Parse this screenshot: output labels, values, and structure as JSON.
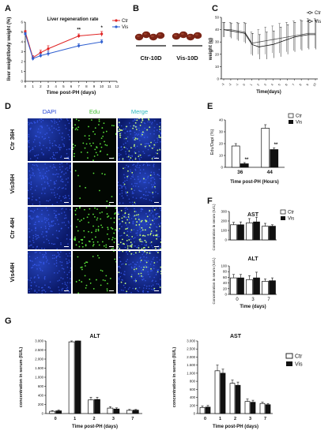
{
  "panels": {
    "A": {
      "letter": "A",
      "title": "Liver regeneration rate",
      "ylabel": "liver weight/body weight (%)",
      "xlabel": "Time post-PH (days)",
      "legend": [
        "Ctr",
        "Vis"
      ],
      "significance": [
        "**",
        "*"
      ]
    },
    "B": {
      "letter": "B",
      "captions": [
        "Ctr-10D",
        "Vis-10D"
      ]
    },
    "C": {
      "letter": "C",
      "ylabel": "weight (g)",
      "xlabel": "Time(days)",
      "legend": [
        "Ctr",
        "Vis"
      ]
    },
    "D": {
      "letter": "D",
      "columns": [
        "DAPI",
        "Edu",
        "Merge"
      ],
      "rows": [
        "Ctr 36H",
        "Vis36H",
        "Ctr 44H",
        "Vis44H"
      ]
    },
    "E": {
      "letter": "E",
      "ylabel": "Edu/Dapi (%)",
      "xlabel": "Time post-PH (Hours)",
      "legend": [
        "Ctr",
        "Vis"
      ],
      "significance": [
        "**",
        "**"
      ]
    },
    "F": {
      "letter": "F",
      "ylabel": "Concentration in serum (IU/L)",
      "xlabel": "Time (days)",
      "legend": [
        "Ctr",
        "Vis"
      ]
    },
    "G": {
      "letter": "G",
      "ylabel": "concentration in serum (IU/L)",
      "xlabel": "Time post-PH (days)",
      "legend": [
        "Ctr",
        "Vis"
      ]
    }
  },
  "colors": {
    "ctr": "#e02424",
    "vis": "#2f5fd0",
    "ctr_bar": "#ffffff",
    "vis_bar": "#111111"
  },
  "chart_data": [
    {
      "id": "A",
      "type": "line",
      "title": "Liver regeneration rate",
      "xlabel": "Time post-PH (days)",
      "ylabel": "liver weight/body weight (%)",
      "xlim": [
        0,
        12
      ],
      "ylim": [
        0,
        6
      ],
      "xticks": [
        0,
        1,
        2,
        3,
        4,
        5,
        6,
        7,
        8,
        9,
        10,
        11,
        12
      ],
      "yticks": [
        0,
        1,
        2,
        3,
        4,
        5,
        6
      ],
      "series": [
        {
          "name": "Ctr",
          "x": [
            0,
            1,
            2,
            3,
            7,
            10
          ],
          "y": [
            5.0,
            2.4,
            2.9,
            3.3,
            4.6,
            4.8
          ],
          "err": [
            0.15,
            0.2,
            0.25,
            0.3,
            0.2,
            0.25
          ]
        },
        {
          "name": "Vis",
          "x": [
            0,
            1,
            2,
            3,
            7,
            10
          ],
          "y": [
            4.8,
            2.3,
            2.6,
            2.8,
            3.6,
            4.0
          ],
          "err": [
            0.15,
            0.2,
            0.2,
            0.25,
            0.2,
            0.2
          ]
        }
      ]
    },
    {
      "id": "C",
      "type": "line",
      "xlabel": "Time(days)",
      "ylabel": "weight (g)",
      "ylim": [
        0,
        50
      ],
      "yticks": [
        0,
        10,
        20,
        30,
        40,
        50
      ],
      "categories": [
        "-3",
        "-2",
        "-1",
        "0",
        "1",
        "2",
        "3",
        "4",
        "5",
        "6",
        "7",
        "8",
        "9",
        "10"
      ],
      "series": [
        {
          "name": "Ctr",
          "values": [
            40,
            40,
            39,
            38,
            29,
            30,
            31,
            32,
            33,
            34,
            35,
            36,
            37,
            37
          ],
          "err": [
            6,
            6,
            7,
            8,
            9,
            10,
            11,
            11,
            12,
            12,
            12,
            12,
            12,
            12
          ]
        },
        {
          "name": "Vis",
          "values": [
            40,
            39,
            38,
            37,
            28,
            26,
            27,
            28,
            30,
            32,
            34,
            35,
            36,
            36
          ],
          "err": [
            6,
            6,
            7,
            8,
            9,
            10,
            11,
            11,
            12,
            12,
            12,
            12,
            12,
            12
          ]
        }
      ]
    },
    {
      "id": "E",
      "type": "bar",
      "xlabel": "Time post-PH (Hours)",
      "ylabel": "Edu/Dapi (%)",
      "ylim": [
        0,
        40
      ],
      "yticks": [
        0,
        10,
        20,
        30,
        40
      ],
      "categories": [
        "36",
        "44"
      ],
      "series": [
        {
          "name": "Ctr",
          "values": [
            18,
            33
          ],
          "err": [
            2,
            3
          ]
        },
        {
          "name": "Vis",
          "values": [
            3,
            15
          ],
          "err": [
            1,
            1.5
          ]
        }
      ]
    },
    {
      "id": "F-AST",
      "type": "bar",
      "title": "AST",
      "ylabel": "Concentration in serum (IU/L)",
      "ylim": [
        0,
        300
      ],
      "yticks": [
        0,
        100,
        200,
        300
      ],
      "categories": [
        "0",
        "3",
        "7"
      ],
      "series": [
        {
          "name": "Ctr",
          "values": [
            160,
            180,
            145
          ],
          "err": [
            25,
            45,
            30
          ]
        },
        {
          "name": "Vis",
          "values": [
            160,
            190,
            145
          ],
          "err": [
            30,
            50,
            15
          ]
        }
      ]
    },
    {
      "id": "F-ALT",
      "type": "bar",
      "title": "ALT",
      "xlabel": "Time (days)",
      "ylabel": "Concentration in serum (IU/L)",
      "ylim": [
        0,
        100
      ],
      "yticks": [
        0,
        20,
        40,
        60,
        80,
        100
      ],
      "categories": [
        "0",
        "3",
        "7"
      ],
      "series": [
        {
          "name": "Ctr",
          "values": [
            58,
            52,
            46
          ],
          "err": [
            12,
            14,
            8
          ]
        },
        {
          "name": "Vis",
          "values": [
            58,
            58,
            48
          ],
          "err": [
            12,
            20,
            10
          ]
        }
      ]
    },
    {
      "id": "G-ALT",
      "type": "bar",
      "title": "ALT",
      "xlabel": "Time post-PH (days)",
      "ylabel": "concentration in serum (IU/L)",
      "ylim": [
        0,
        3000
      ],
      "yticks": [
        0,
        200,
        400,
        600,
        1000,
        1500,
        2000,
        2500,
        3000
      ],
      "ytick_labels": [
        "0",
        "200",
        "400",
        "600",
        "1.000",
        "1.500",
        "2.000",
        "2.500",
        "3.000"
      ],
      "categories": [
        "0",
        "1",
        "2",
        "3",
        "7"
      ],
      "series": [
        {
          "name": "Ctr",
          "values": [
            50,
            2950,
            300,
            120,
            70
          ],
          "err": [
            15,
            80,
            60,
            30,
            20
          ]
        },
        {
          "name": "Vis",
          "values": [
            60,
            3000,
            310,
            100,
            75
          ],
          "err": [
            15,
            90,
            50,
            25,
            15
          ]
        }
      ]
    },
    {
      "id": "G-AST",
      "type": "bar",
      "title": "AST",
      "xlabel": "Time post-PH (days)",
      "ylabel": "concentration in serum (IU/L)",
      "ylim": [
        0,
        3000
      ],
      "yticks": [
        0,
        200,
        400,
        600,
        800,
        1000,
        1500,
        2000,
        2500,
        3000
      ],
      "ytick_labels": [
        "0",
        "200",
        "400",
        "600",
        "800",
        "1.000",
        "1.500",
        "2.000",
        "2.500",
        "3.000"
      ],
      "categories": [
        "0",
        "1",
        "2",
        "3",
        "7"
      ],
      "series": [
        {
          "name": "Ctr",
          "values": [
            150,
            1150,
            750,
            300,
            250
          ],
          "err": [
            40,
            350,
            80,
            60,
            30
          ]
        },
        {
          "name": "Vis",
          "values": [
            160,
            1000,
            700,
            280,
            220
          ],
          "err": [
            40,
            250,
            80,
            50,
            30
          ]
        }
      ]
    }
  ]
}
